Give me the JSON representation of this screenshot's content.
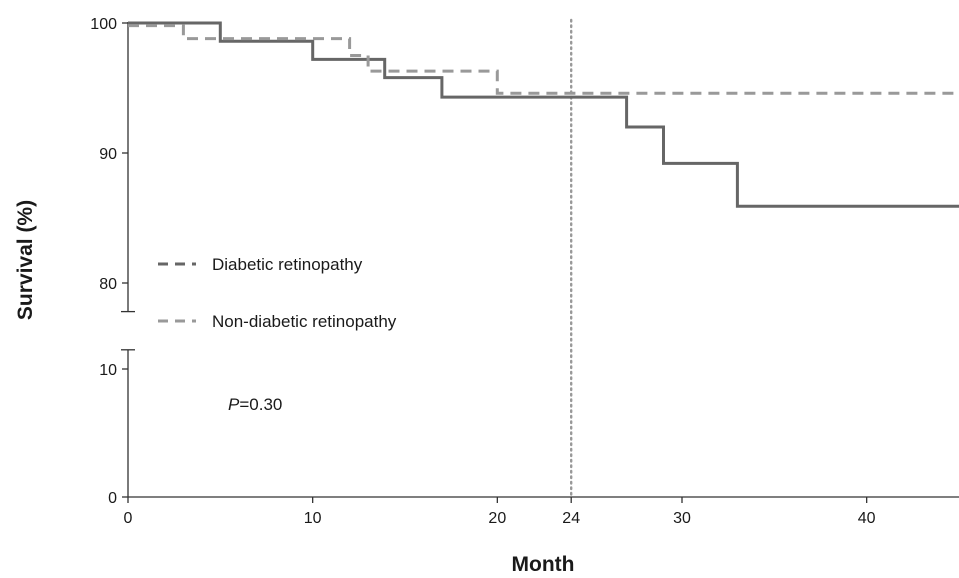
{
  "chart_data": {
    "type": "line",
    "subtype": "kaplan-meier-step",
    "xlabel": "Month",
    "ylabel": "Survival (%)",
    "xlim": [
      0,
      45
    ],
    "y_axis_broken": true,
    "y_upper_segment": [
      77.8,
      100
    ],
    "y_lower_segment": [
      0,
      11.5
    ],
    "x_ticks": [
      0,
      10,
      20,
      24,
      30,
      40
    ],
    "x_tick_labels": [
      "0",
      "10",
      "20",
      "24",
      "30",
      "40"
    ],
    "y_ticks": [
      0,
      10,
      80,
      90,
      100
    ],
    "y_tick_labels": [
      "0",
      "10",
      "80",
      "90",
      "100"
    ],
    "grid": false,
    "legend_position": "left-middle",
    "reference_line_x": 24,
    "annotation": {
      "p_italic": "P",
      "p_rest": "=0.30"
    },
    "series": [
      {
        "name": "Diabetic retinopathy",
        "line_style": "solid",
        "color": "#666666",
        "legend_line_style": "dashed",
        "points": [
          [
            0,
            100
          ],
          [
            5,
            100
          ],
          [
            5,
            98.6
          ],
          [
            10,
            98.6
          ],
          [
            10,
            97.2
          ],
          [
            13.9,
            97.2
          ],
          [
            13.9,
            95.8
          ],
          [
            17,
            95.8
          ],
          [
            17,
            94.3
          ],
          [
            27,
            94.3
          ],
          [
            27,
            92
          ],
          [
            29,
            92
          ],
          [
            29,
            89.2
          ],
          [
            33,
            89.2
          ],
          [
            33,
            85.9
          ],
          [
            45,
            85.9
          ]
        ]
      },
      {
        "name": "Non-diabetic retinopathy",
        "line_style": "dashed",
        "color": "#999999",
        "legend_line_style": "dashed",
        "points": [
          [
            0,
            99.8
          ],
          [
            3,
            99.8
          ],
          [
            3,
            98.8
          ],
          [
            12,
            98.8
          ],
          [
            12,
            97.5
          ],
          [
            13,
            97.5
          ],
          [
            13,
            96.3
          ],
          [
            20,
            96.3
          ],
          [
            20,
            94.6
          ],
          [
            45,
            94.6
          ]
        ]
      }
    ]
  }
}
